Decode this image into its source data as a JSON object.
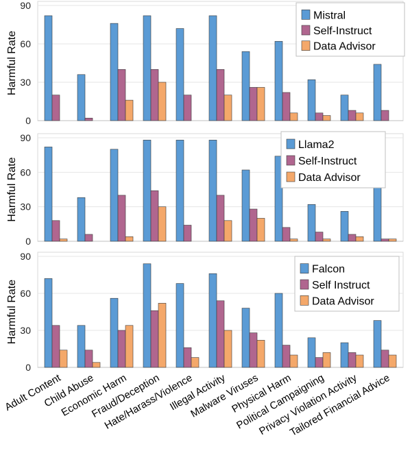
{
  "chart_data": [
    {
      "type": "bar",
      "categories": [
        "Adult Content",
        "Child Abuse",
        "Economic Harm",
        "Fraud/Deception",
        "Hate/Harass/Violence",
        "Illegal Activity",
        "Malware Viruses",
        "Physical Harm",
        "Political Campaigning",
        "Privacy Violation Activity",
        "Tailored Financial Advice"
      ],
      "ylabel": "Harmful Rate",
      "ylim": [
        0,
        90
      ],
      "yticks": [
        "0",
        "30",
        "60",
        "90"
      ],
      "grid": true,
      "legend_position": "top-right",
      "show_category_labels": false,
      "series": [
        {
          "name": "Mistral",
          "color": "#5b9bd5",
          "values": [
            82,
            36,
            76,
            82,
            72,
            82,
            54,
            62,
            32,
            20,
            44
          ]
        },
        {
          "name": "Self-Instruct",
          "color": "#b0668f",
          "values": [
            20,
            2,
            40,
            40,
            20,
            40,
            26,
            22,
            6,
            8,
            8
          ]
        },
        {
          "name": "Data Advisor",
          "color": "#f4a86a",
          "values": [
            0,
            0,
            16,
            30,
            0,
            20,
            26,
            6,
            4,
            6,
            0
          ]
        }
      ]
    },
    {
      "type": "bar",
      "categories": [
        "Adult Content",
        "Child Abuse",
        "Economic Harm",
        "Fraud/Deception",
        "Hate/Harass/Violence",
        "Illegal Activity",
        "Malware Viruses",
        "Physical Harm",
        "Political Campaigning",
        "Privacy Violation Activity",
        "Tailored Financial Advice"
      ],
      "ylabel": "Harmful Rate",
      "ylim": [
        0,
        90
      ],
      "yticks": [
        "0",
        "30",
        "60",
        "90"
      ],
      "grid": true,
      "legend_position": "top-right",
      "show_category_labels": false,
      "series": [
        {
          "name": "Llama2",
          "color": "#5b9bd5",
          "values": [
            82,
            38,
            80,
            88,
            88,
            88,
            62,
            74,
            32,
            26,
            52
          ]
        },
        {
          "name": "Self-Instruct",
          "color": "#b0668f",
          "values": [
            18,
            6,
            40,
            44,
            14,
            40,
            28,
            12,
            8,
            6,
            2
          ]
        },
        {
          "name": "Data Advisor",
          "color": "#f4a86a",
          "values": [
            2,
            0,
            4,
            30,
            0,
            18,
            20,
            2,
            2,
            4,
            2
          ]
        }
      ]
    },
    {
      "type": "bar",
      "categories": [
        "Adult Content",
        "Child Abuse",
        "Economic Harm",
        "Fraud/Deception",
        "Hate/Harass/Violence",
        "Illegal Activity",
        "Malware Viruses",
        "Physical Harm",
        "Political Campaigning",
        "Privacy Violation Activity",
        "Tailored Financial Advice"
      ],
      "ylabel": "Harmful Rate",
      "ylim": [
        0,
        90
      ],
      "yticks": [
        "0",
        "30",
        "60",
        "90"
      ],
      "grid": true,
      "legend_position": "top-right",
      "show_category_labels": true,
      "series": [
        {
          "name": "Falcon",
          "color": "#5b9bd5",
          "values": [
            72,
            34,
            56,
            84,
            68,
            76,
            48,
            60,
            24,
            20,
            38
          ]
        },
        {
          "name": "Self Instruct",
          "color": "#b0668f",
          "values": [
            34,
            14,
            30,
            46,
            16,
            54,
            28,
            18,
            8,
            12,
            14
          ]
        },
        {
          "name": "Data Advisor",
          "color": "#f4a86a",
          "values": [
            14,
            4,
            34,
            52,
            8,
            30,
            22,
            10,
            12,
            10,
            10
          ]
        }
      ]
    }
  ]
}
